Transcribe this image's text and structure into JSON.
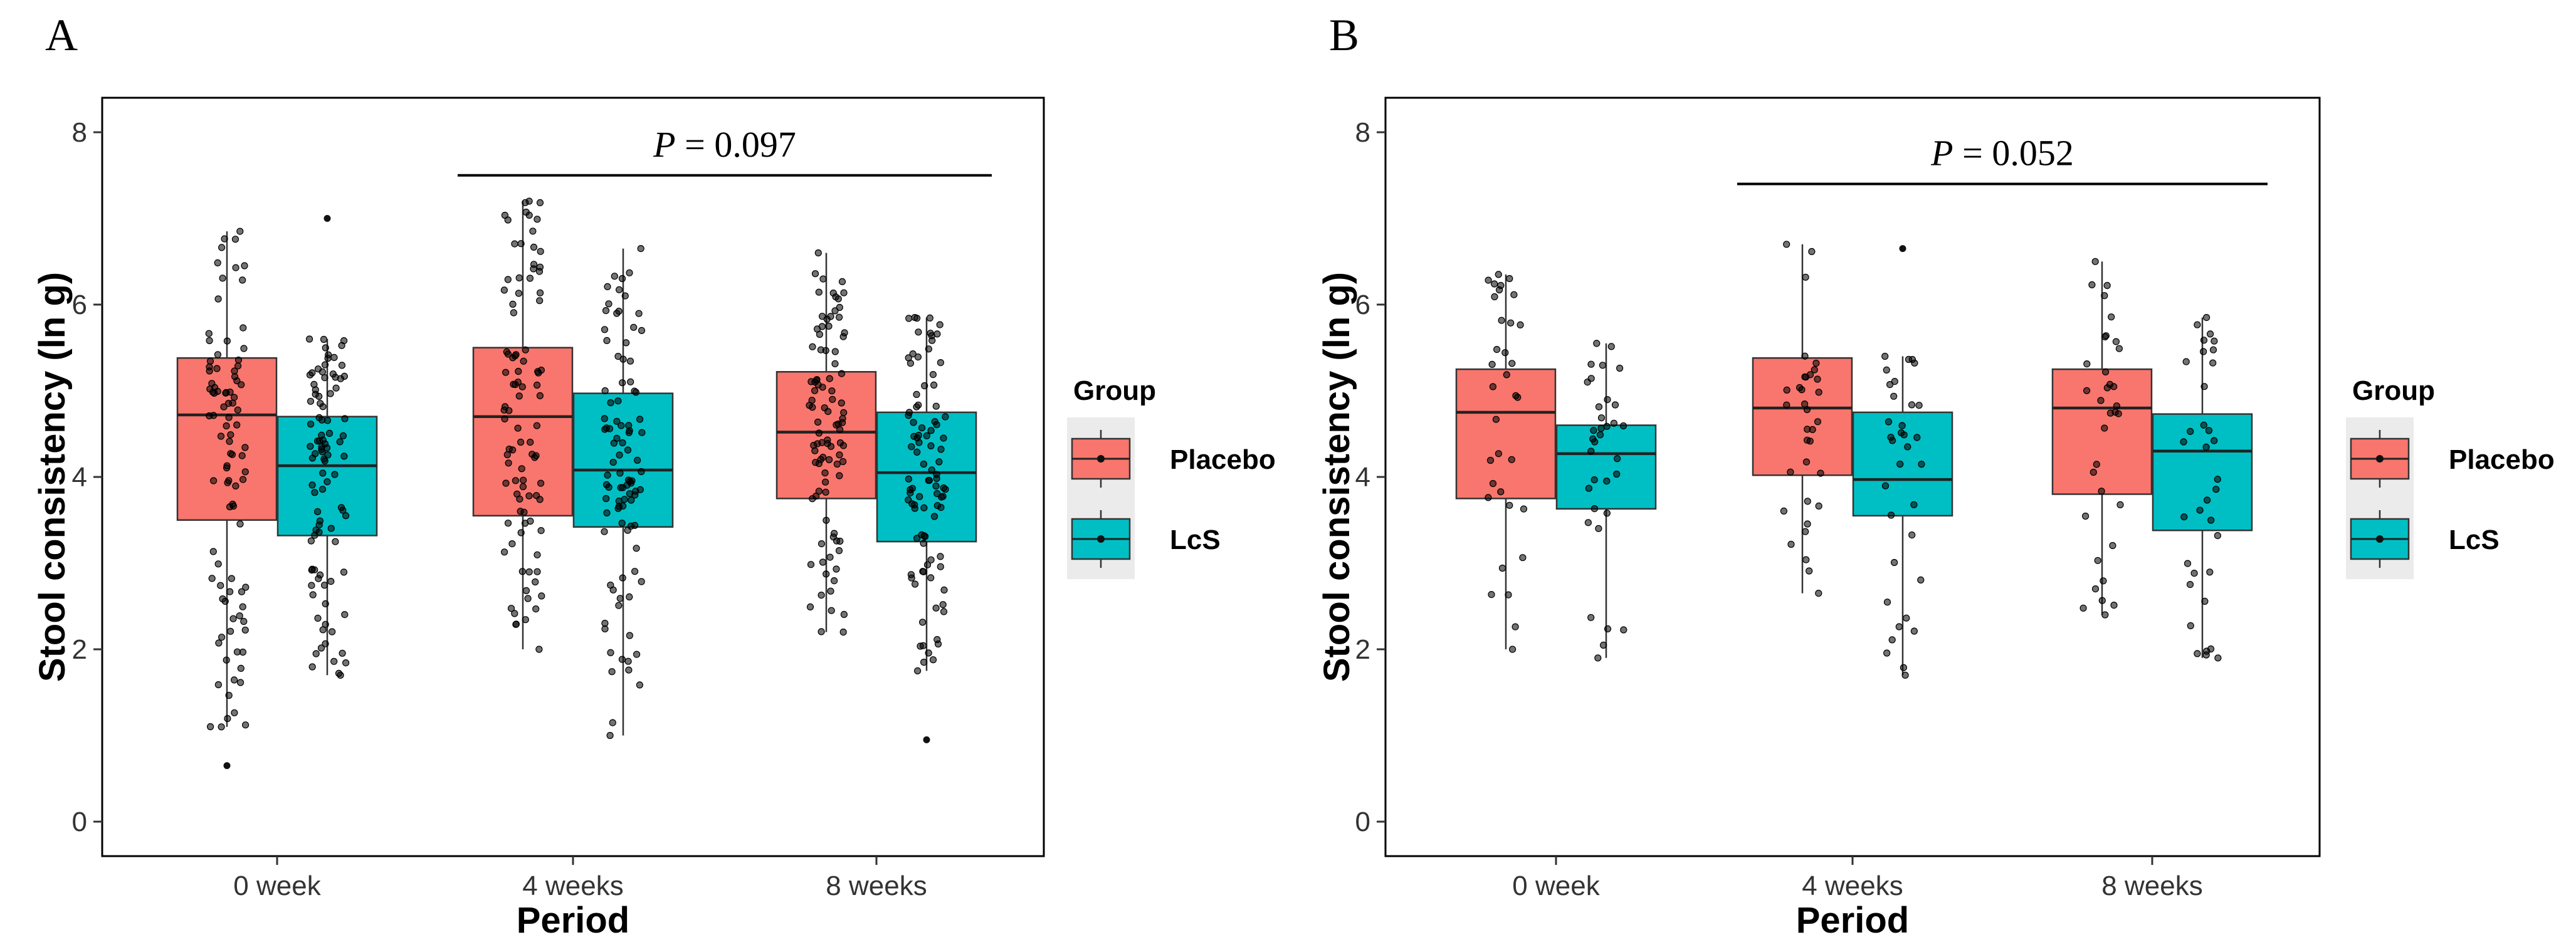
{
  "chart_data": [
    {
      "panel": "A",
      "type": "boxplot",
      "xlabel": "Period",
      "ylabel": "Stool consistency (ln g)",
      "ylim": [
        -0.4,
        8.4
      ],
      "yticks": [
        "0",
        "2",
        "4",
        "6",
        "8"
      ],
      "categories": [
        "0 week",
        "4 weeks",
        "8 weeks"
      ],
      "legend": {
        "title": "Group",
        "placement": "right"
      },
      "annotation": {
        "italic": "P",
        "text": " = 0.097",
        "from": "4 weeks",
        "to": "8 weeks",
        "y": 7.5
      },
      "series": [
        {
          "name": "Placebo",
          "color": "#F8766D",
          "stats": [
            {
              "q1": 3.5,
              "median": 4.72,
              "q3": 5.38,
              "min": 1.1,
              "max": 6.85
            },
            {
              "q1": 3.55,
              "median": 4.7,
              "q3": 5.5,
              "min": 2.0,
              "max": 7.2
            },
            {
              "q1": 3.75,
              "median": 4.52,
              "q3": 5.22,
              "min": 2.2,
              "max": 6.6
            }
          ],
          "outliers": [
            [
              0.65
            ],
            [],
            []
          ],
          "n": 95
        },
        {
          "name": "LcS",
          "color": "#00BFC4",
          "stats": [
            {
              "q1": 3.32,
              "median": 4.13,
              "q3": 4.7,
              "min": 1.7,
              "max": 5.6
            },
            {
              "q1": 3.42,
              "median": 4.08,
              "q3": 4.97,
              "min": 1.0,
              "max": 6.65
            },
            {
              "q1": 3.25,
              "median": 4.05,
              "q3": 4.75,
              "min": 1.75,
              "max": 5.85
            }
          ],
          "outliers": [
            [
              7.0
            ],
            [],
            [
              0.95
            ]
          ],
          "n": 95
        }
      ]
    },
    {
      "panel": "B",
      "type": "boxplot",
      "xlabel": "Period",
      "ylabel": "Stool consistency (ln g)",
      "ylim": [
        -0.4,
        8.4
      ],
      "yticks": [
        "0",
        "2",
        "4",
        "6",
        "8"
      ],
      "categories": [
        "0 week",
        "4 weeks",
        "8 weeks"
      ],
      "legend": {
        "title": "Group",
        "placement": "right"
      },
      "annotation": {
        "italic": "P",
        "text": " = 0.052",
        "from": "4 weeks",
        "to": "8 weeks",
        "y": 7.4
      },
      "series": [
        {
          "name": "Placebo",
          "color": "#F8766D",
          "stats": [
            {
              "q1": 3.75,
              "median": 4.75,
              "q3": 5.25,
              "min": 2.0,
              "max": 6.35
            },
            {
              "q1": 4.02,
              "median": 4.8,
              "q3": 5.38,
              "min": 2.65,
              "max": 6.7
            },
            {
              "q1": 3.8,
              "median": 4.8,
              "q3": 5.25,
              "min": 2.4,
              "max": 6.5
            }
          ],
          "outliers": [
            [],
            [],
            []
          ],
          "n": 34
        },
        {
          "name": "LcS",
          "color": "#00BFC4",
          "stats": [
            {
              "q1": 3.63,
              "median": 4.27,
              "q3": 4.6,
              "min": 1.9,
              "max": 5.55
            },
            {
              "q1": 3.55,
              "median": 3.97,
              "q3": 4.75,
              "min": 1.7,
              "max": 5.4
            },
            {
              "q1": 3.38,
              "median": 4.3,
              "q3": 4.73,
              "min": 1.9,
              "max": 5.85
            }
          ],
          "outliers": [
            [],
            [
              6.65
            ],
            []
          ],
          "n": 34
        }
      ]
    }
  ]
}
